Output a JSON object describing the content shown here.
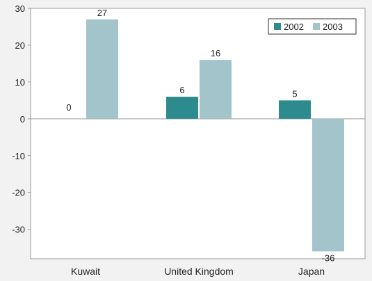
{
  "chart_data": {
    "type": "bar",
    "title": "",
    "xlabel": "",
    "ylabel": "",
    "categories": [
      "Kuwait",
      "United Kingdom",
      "Japan"
    ],
    "series": [
      {
        "name": "2002",
        "values": [
          0,
          6,
          5
        ],
        "labels": [
          "0",
          "6",
          "5"
        ],
        "color": "#2e8b8d"
      },
      {
        "name": "2003",
        "values": [
          27,
          16,
          -36
        ],
        "labels": [
          "27",
          "16",
          "-36"
        ],
        "color": "#a3c4cb"
      }
    ],
    "ylim": [
      -38,
      30
    ],
    "yticks": [
      30,
      20,
      10,
      0,
      -10,
      -20,
      -30
    ],
    "ytick_labels": [
      "30",
      "20",
      "10",
      "0",
      "-10",
      "-20",
      "-30"
    ],
    "grid": false,
    "legend_position": "top-right",
    "colors": {
      "plot_background": "#ffffff",
      "axis": "#9a9a9a",
      "page_background": "#f2f2f2"
    }
  }
}
